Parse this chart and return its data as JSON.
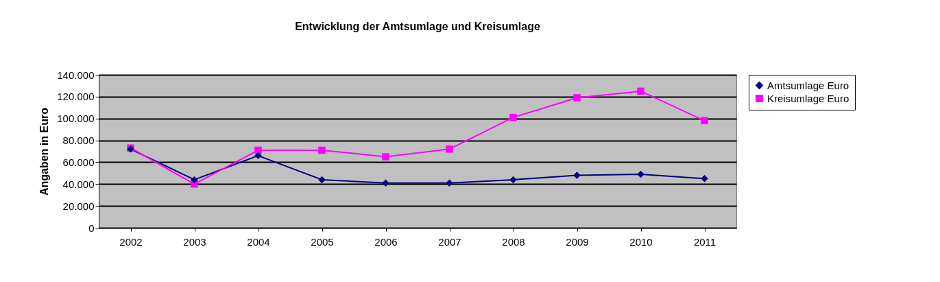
{
  "chart_data": {
    "type": "line",
    "title": "Entwicklung der Amtsumlage und Kreisumlage",
    "ylabel": "Angaben in Euro",
    "categories": [
      "2002",
      "2003",
      "2004",
      "2005",
      "2006",
      "2007",
      "2008",
      "2009",
      "2010",
      "2011"
    ],
    "series": [
      {
        "name": "Amtsumlage Euro",
        "color": "#000080",
        "marker": "diamond",
        "values": [
          72000,
          44000,
          66000,
          44000,
          41000,
          41000,
          44000,
          48000,
          49000,
          45000
        ]
      },
      {
        "name": "Kreisumlage Euro",
        "color": "#ff00ff",
        "marker": "square",
        "values": [
          73000,
          40000,
          71000,
          71000,
          65000,
          72000,
          101000,
          119000,
          125000,
          98000
        ]
      }
    ],
    "ylim": [
      0,
      140000
    ],
    "yticks": [
      0,
      {
        "value": 20000,
        "label": "20.000"
      },
      {
        "value": 40000,
        "label": "40.000"
      },
      {
        "value": 60000,
        "label": "60.000"
      },
      {
        "value": 80000,
        "label": "80.000"
      },
      {
        "value": 100000,
        "label": "100.000"
      },
      {
        "value": 120000,
        "label": "120.000"
      },
      {
        "value": 140000,
        "label": "140.000"
      }
    ],
    "grid": "y",
    "legend": "right"
  }
}
